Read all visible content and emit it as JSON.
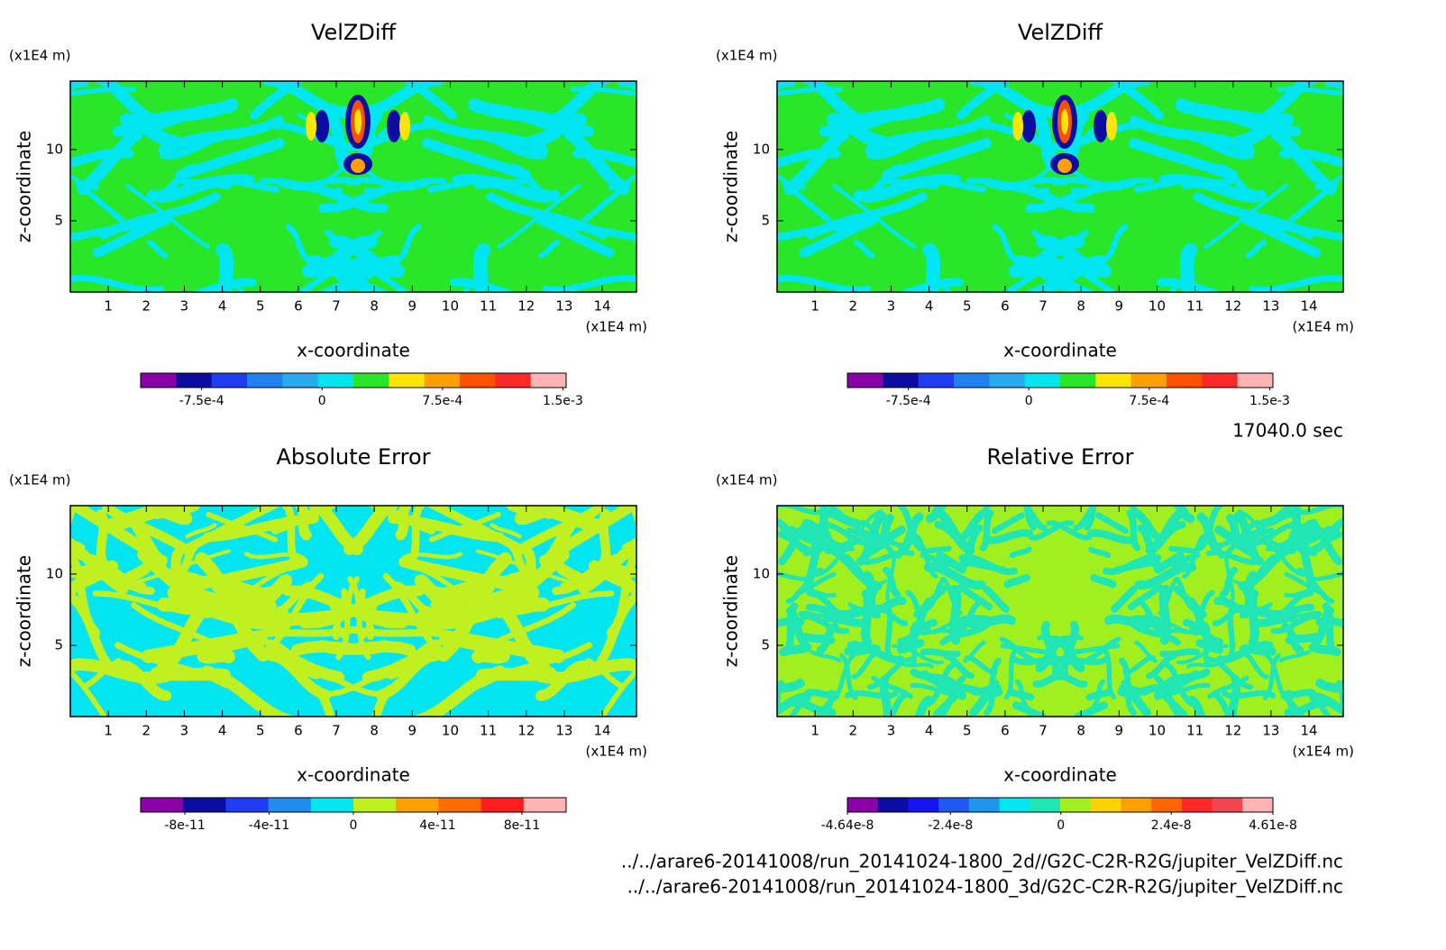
{
  "chart_data": [
    {
      "type": "contour",
      "title": "VelZDiff",
      "x_label": "x-coordinate",
      "y_label": "z-coordinate",
      "x_unit": "(x1E4 m)",
      "y_unit": "(x1E4 m)",
      "xlim": [
        0,
        14.9
      ],
      "xticks": [
        1,
        2,
        3,
        4,
        5,
        6,
        7,
        8,
        9,
        10,
        11,
        12,
        13,
        14
      ],
      "ylim": [
        0,
        14.8
      ],
      "yticks": [
        5,
        10
      ],
      "colorbar": {
        "colors": [
          "#8a00a8",
          "#0c0ca0",
          "#1e3cf0",
          "#1e82f0",
          "#28aaf0",
          "#00e6f0",
          "#28e628",
          "#ffe600",
          "#ffa000",
          "#ff5000",
          "#ff2828",
          "#ffb4b4"
        ],
        "clim": [
          -0.00113,
          0.00152
        ],
        "ticks": [
          {
            "value": -0.00075,
            "label": "-7.5e-4"
          },
          0,
          {
            "value": 0.00075,
            "label": "7.5e-4"
          },
          {
            "value": 0.0015,
            "label": "1.5e-3"
          }
        ]
      }
    },
    {
      "type": "contour",
      "title": "VelZDiff",
      "x_label": "x-coordinate",
      "y_label": "z-coordinate",
      "x_unit": "(x1E4 m)",
      "y_unit": "(x1E4 m)",
      "xlim": [
        0,
        14.9
      ],
      "xticks": [
        1,
        2,
        3,
        4,
        5,
        6,
        7,
        8,
        9,
        10,
        11,
        12,
        13,
        14
      ],
      "ylim": [
        0,
        14.8
      ],
      "yticks": [
        5,
        10
      ],
      "colorbar": {
        "colors": [
          "#8a00a8",
          "#0c0ca0",
          "#1e3cf0",
          "#1e82f0",
          "#28aaf0",
          "#00e6f0",
          "#28e628",
          "#ffe600",
          "#ffa000",
          "#ff5000",
          "#ff2828",
          "#ffb4b4"
        ],
        "clim": [
          -0.00113,
          0.00152
        ],
        "ticks": [
          {
            "value": -0.00075,
            "label": "-7.5e-4"
          },
          0,
          {
            "value": 0.00075,
            "label": "7.5e-4"
          },
          {
            "value": 0.0015,
            "label": "1.5e-3"
          }
        ]
      }
    },
    {
      "type": "contour",
      "title": "Absolute Error",
      "x_label": "x-coordinate",
      "y_label": "z-coordinate",
      "x_unit": "(x1E4 m)",
      "y_unit": "(x1E4 m)",
      "xlim": [
        0,
        14.9
      ],
      "xticks": [
        1,
        2,
        3,
        4,
        5,
        6,
        7,
        8,
        9,
        10,
        11,
        12,
        13,
        14
      ],
      "ylim": [
        0,
        14.8
      ],
      "yticks": [
        5,
        10
      ],
      "colorbar": {
        "colors": [
          "#8a00a8",
          "#0c0ca0",
          "#1e3cf0",
          "#1e8cf0",
          "#00e6f0",
          "#c0f020",
          "#ffa000",
          "#ff6a00",
          "#ff1e1e",
          "#ffb4b4"
        ],
        "clim": [
          -1.01e-10,
          1.01e-10
        ],
        "ticks": [
          {
            "value": -8e-11,
            "label": "-8e-11"
          },
          {
            "value": -4e-11,
            "label": "-4e-11"
          },
          0,
          {
            "value": 4e-11,
            "label": "4e-11"
          },
          {
            "value": 8e-11,
            "label": "8e-11"
          }
        ]
      }
    },
    {
      "type": "contour",
      "title": "Relative Error",
      "x_label": "x-coordinate",
      "y_label": "z-coordinate",
      "x_unit": "(x1E4 m)",
      "y_unit": "(x1E4 m)",
      "xlim": [
        0,
        14.9
      ],
      "xticks": [
        1,
        2,
        3,
        4,
        5,
        6,
        7,
        8,
        9,
        10,
        11,
        12,
        13,
        14
      ],
      "ylim": [
        0,
        14.8
      ],
      "yticks": [
        5,
        10
      ],
      "colorbar": {
        "colors": [
          "#8a00a8",
          "#0c0ca0",
          "#1414f0",
          "#1e5af0",
          "#1e96f0",
          "#00e6f0",
          "#20e6b4",
          "#a0f020",
          "#ffd200",
          "#ffa000",
          "#ff6400",
          "#ff2828",
          "#f04650",
          "#ffb4b4"
        ],
        "clim": [
          -4.64e-08,
          4.61e-08
        ],
        "ticks": [
          {
            "value": -4.64e-08,
            "label": "-4.64e-8"
          },
          {
            "value": -2.4e-08,
            "label": "-2.4e-8"
          },
          0,
          {
            "value": 2.4e-08,
            "label": "2.4e-8"
          },
          {
            "value": 4.61e-08,
            "label": "4.61e-8"
          }
        ]
      }
    }
  ],
  "time": "17040.0 sec",
  "files": [
    "../../arare6-20141008/run_20141024-1800_2d//G2C-C2R-R2G/jupiter_VelZDiff.nc",
    "../../arare6-20141008/run_20141024-1800_3d/G2C-C2R-R2G/jupiter_VelZDiff.nc"
  ]
}
